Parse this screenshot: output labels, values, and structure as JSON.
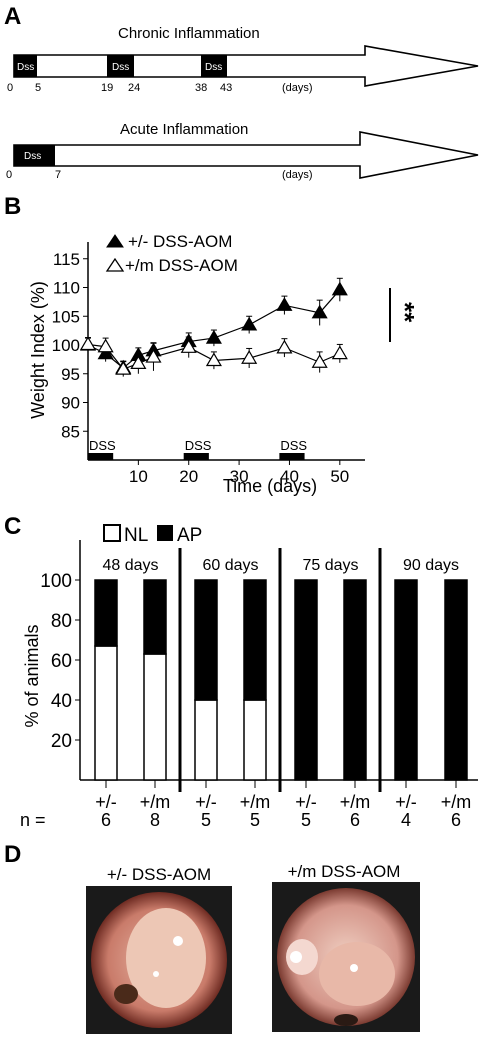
{
  "panel_a": {
    "letter": "A",
    "chronic_title": "Chronic Inflammation",
    "acute_title": "Acute Inflammation",
    "dss_label": "Dss",
    "days_label": "(days)",
    "chronic_ticks": [
      "0",
      "5",
      "19",
      "24",
      "38",
      "43"
    ],
    "acute_ticks": [
      "0",
      "7"
    ]
  },
  "panel_b": {
    "letter": "B",
    "legend": [
      "+/- DSS-AOM",
      "+/m DSS-AOM"
    ],
    "significance": "**",
    "dss_bar_label": "DSS"
  },
  "panel_c": {
    "letter": "C",
    "legend": [
      "NL",
      "AP"
    ],
    "n_prefix": "n =",
    "groups": [
      "48 days",
      "60 days",
      "75 days",
      "90 days"
    ]
  },
  "panel_d": {
    "letter": "D",
    "titles": [
      "+/- DSS-AOM",
      "+/m DSS-AOM"
    ]
  },
  "colors": {
    "het": "#000000",
    "mut": "#ffffff",
    "stroke": "#000000"
  },
  "chart_data": [
    {
      "type": "line",
      "xlabel": "Time (days)",
      "ylabel": "Weight Index (%)",
      "xlim": [
        0,
        55
      ],
      "ylim": [
        80,
        120
      ],
      "xticks": [
        10,
        20,
        30,
        40,
        50
      ],
      "yticks": [
        85,
        90,
        95,
        100,
        105,
        110,
        115
      ],
      "dss_periods": [
        [
          0,
          5
        ],
        [
          19,
          24
        ],
        [
          38,
          43
        ]
      ],
      "series": [
        {
          "name": "+/- DSS-AOM",
          "x": [
            0,
            3.5,
            7,
            10,
            13,
            20,
            25,
            32,
            39,
            46,
            50
          ],
          "y": [
            100,
            98.5,
            96,
            98.2,
            99,
            100.6,
            101.2,
            103.5,
            106.9,
            105.6,
            109.6
          ],
          "err": [
            1.2,
            1.4,
            1.2,
            1.3,
            1.4,
            1.5,
            1.4,
            1.5,
            1.6,
            2.2,
            2.0
          ]
        },
        {
          "name": "+/m DSS-AOM",
          "x": [
            0,
            3.5,
            7,
            10,
            13,
            20,
            25,
            32,
            39,
            46,
            50
          ],
          "y": [
            100.1,
            99.7,
            95.8,
            96.8,
            97.9,
            99.6,
            97.3,
            97.7,
            99.5,
            97,
            98.5
          ],
          "err": [
            1.2,
            1.5,
            1.3,
            1.8,
            2.4,
            1.8,
            1.5,
            1.7,
            1.6,
            1.8,
            1.6
          ]
        }
      ]
    },
    {
      "type": "bar",
      "ylabel": "% of animals",
      "ylim": [
        0,
        100
      ],
      "yticks": [
        20,
        40,
        60,
        80,
        100
      ],
      "categories": [
        "+/-",
        "+/m",
        "+/-",
        "+/m",
        "+/-",
        "+/m",
        "+/-",
        "+/m"
      ],
      "n": [
        "6",
        "8",
        "5",
        "5",
        "5",
        "6",
        "4",
        "6"
      ],
      "series": [
        {
          "name": "NL",
          "values": [
            67,
            63,
            40,
            40,
            0,
            0,
            0,
            0
          ]
        },
        {
          "name": "AP",
          "values": [
            33,
            37,
            60,
            60,
            100,
            100,
            100,
            100
          ]
        }
      ]
    }
  ]
}
